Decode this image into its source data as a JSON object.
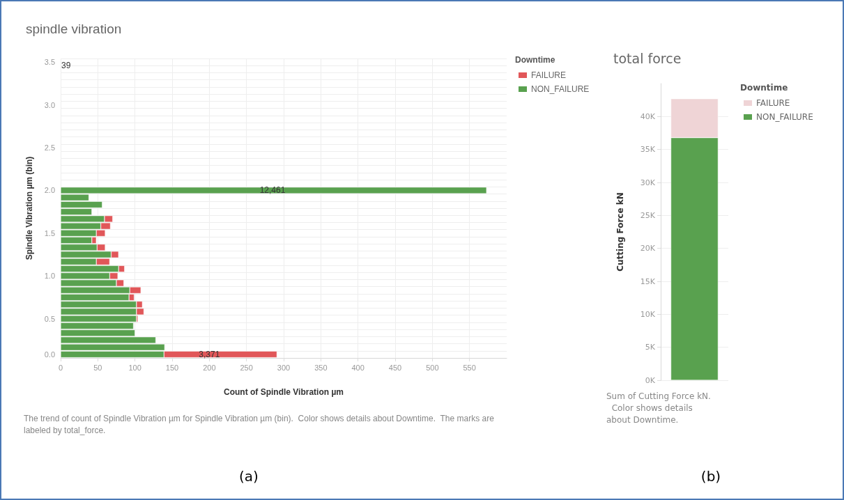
{
  "chart_data": [
    {
      "type": "bar",
      "title": "spindle vibration",
      "orientation": "horizontal",
      "stacked": true,
      "xlabel": "Count of Spindle Vibration µm",
      "ylabel": "Spindle Vibration µm (bin)",
      "legend_title": "Downtime",
      "legend": "top right",
      "grid": true,
      "categories": [
        "3.5",
        null,
        null,
        null,
        null,
        null,
        "3.0",
        null,
        null,
        null,
        null,
        null,
        "2.5",
        null,
        null,
        null,
        null,
        null,
        "2.0",
        null,
        null,
        null,
        null,
        null,
        "1.5",
        null,
        null,
        null,
        null,
        null,
        "1.0",
        null,
        null,
        null,
        null,
        null,
        "0.5",
        null,
        null,
        null,
        null,
        "0.0"
      ],
      "series": [
        {
          "name": "NON_FAILURE",
          "color": "#59a14f",
          "values": [
            null,
            null,
            null,
            null,
            null,
            null,
            null,
            null,
            null,
            null,
            null,
            null,
            null,
            null,
            null,
            null,
            null,
            null,
            573,
            38,
            56,
            42,
            59,
            54,
            48,
            42,
            49,
            68,
            48,
            78,
            66,
            75,
            93,
            92,
            102,
            102,
            102,
            98,
            100,
            128,
            140,
            139
          ]
        },
        {
          "name": "FAILURE",
          "color": "#e15759",
          "values": [
            null,
            null,
            null,
            null,
            null,
            null,
            null,
            null,
            null,
            null,
            null,
            null,
            null,
            null,
            null,
            null,
            null,
            null,
            null,
            null,
            null,
            null,
            11,
            13,
            12,
            6,
            11,
            10,
            18,
            8,
            11,
            10,
            15,
            7,
            8,
            10,
            2,
            null,
            null,
            null,
            null,
            152
          ]
        }
      ],
      "xlim": [
        0,
        600
      ],
      "xticks": [
        0,
        50,
        100,
        150,
        200,
        250,
        300,
        350,
        400,
        450,
        500,
        550
      ],
      "annotations": [
        "39",
        {
          "text": "12,461",
          "x": 285,
          "y": "2.0"
        },
        {
          "text": "3,371",
          "x": 200,
          "y": "0.0"
        },
        "The trend of count of Spindle Vibration µm for Spindle Vibration µm (bin).  Color shows details about Downtime.  The marks are labeled by total_force.",
        "(a)"
      ]
    },
    {
      "type": "bar",
      "title": "total force",
      "stacked": true,
      "ylabel": "Cutting Force kN",
      "legend_title": "Downtime",
      "legend": "top right",
      "grid": "y",
      "categories": [
        null
      ],
      "series": [
        {
          "name": "NON_FAILURE",
          "color": "#59a14f",
          "values": [
            36800
          ]
        },
        {
          "name": "FAILURE",
          "color": "#efd4d6",
          "values": [
            5900
          ]
        }
      ],
      "ylim": [
        0,
        45000
      ],
      "yticks": [
        {
          "value": 0,
          "label": "0K"
        },
        {
          "value": 5000,
          "label": "5K"
        },
        {
          "value": 10000,
          "label": "10K"
        },
        {
          "value": 15000,
          "label": "15K"
        },
        {
          "value": 20000,
          "label": "20K"
        },
        {
          "value": 25000,
          "label": "25K"
        },
        {
          "value": 30000,
          "label": "30K"
        },
        {
          "value": 35000,
          "label": "35K"
        },
        {
          "value": 40000,
          "label": "40K"
        }
      ],
      "annotations": [
        "Sum of Cutting Force kN.  Color shows details about Downtime.",
        "(b)"
      ]
    }
  ]
}
